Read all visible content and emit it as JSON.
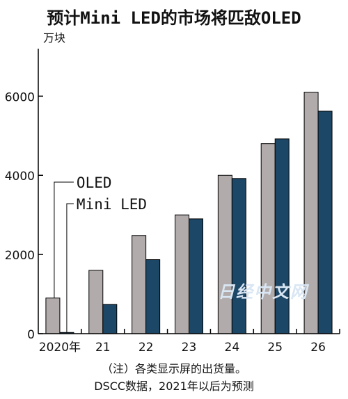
{
  "chart_data": {
    "type": "bar",
    "title": "预计Mini LED的市场将匹敌OLED",
    "ylabel": "万块",
    "xlabel": "",
    "categories": [
      "2020年",
      "21",
      "22",
      "23",
      "24",
      "25",
      "26"
    ],
    "series": [
      {
        "name": "OLED",
        "values": [
          900,
          1600,
          2480,
          3000,
          4000,
          4800,
          6100
        ]
      },
      {
        "name": "Mini LED",
        "values": [
          30,
          740,
          1870,
          2900,
          3920,
          4920,
          5620
        ]
      }
    ],
    "ylim": [
      0,
      7200
    ],
    "yticks": [
      0,
      2000,
      4000,
      6000
    ],
    "grid": false,
    "legend": "inline-left"
  },
  "notes": {
    "line1": "（注）各类显示屏的出货量。",
    "line2": "DSCC数据，2021年以后为预测"
  },
  "colors": {
    "oled": "#b1acab",
    "miniled": "#1d4766",
    "axis": "#000000"
  },
  "watermark": "日经中文网"
}
